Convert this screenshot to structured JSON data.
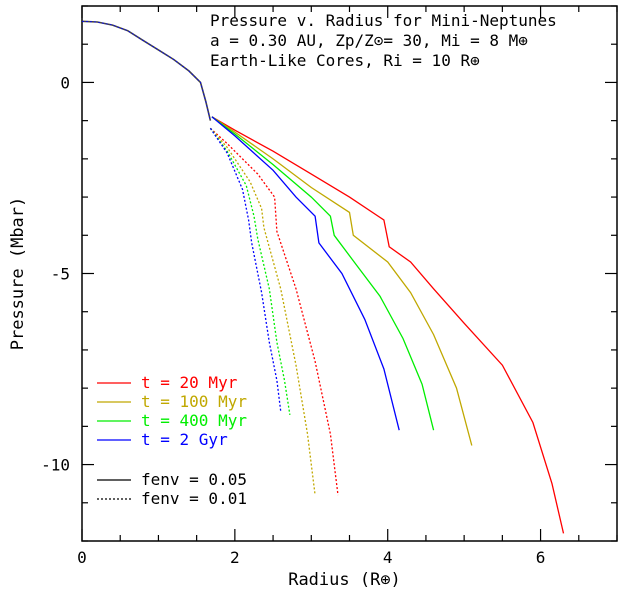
{
  "chart_data": {
    "type": "line",
    "title_lines": [
      "Pressure v. Radius for Mini-Neptunes",
      "a = 0.30 AU, Zp/Z⊙= 30, Mi = 8 M⊕",
      "Earth-Like Cores, Ri = 10 R⊕"
    ],
    "xlabel": "Radius (R⊕)",
    "ylabel": "Pressure (Mbar)",
    "xlim": [
      0,
      7
    ],
    "ylim": [
      -12,
      2
    ],
    "x_ticks": [
      0,
      2,
      4,
      6
    ],
    "y_ticks": [
      0,
      -5,
      -10
    ],
    "x_tick_labels": [
      "0",
      "2",
      "4",
      "6"
    ],
    "y_tick_labels": [
      "0",
      "-5",
      "-10"
    ],
    "grid": false,
    "legend_position": "bottom-left",
    "colors": {
      "t20": "#ff0000",
      "t100": "#c0a800",
      "t400": "#00ee00",
      "t2g": "#0000ff",
      "core": "#444444"
    },
    "legend": {
      "series": [
        {
          "label": "t = 20 Myr",
          "color": "#ff0000"
        },
        {
          "label": "t = 100 Myr",
          "color": "#c0a800"
        },
        {
          "label": "t = 400 Myr",
          "color": "#00ee00"
        },
        {
          "label": "t = 2 Gyr",
          "color": "#0000ff"
        }
      ],
      "styles": [
        {
          "label": "fenv = 0.05",
          "dash": false
        },
        {
          "label": "fenv = 0.01",
          "dash": true
        }
      ]
    },
    "core_profile": {
      "x": [
        0.0,
        0.2,
        0.4,
        0.6,
        0.8,
        1.0,
        1.2,
        1.4,
        1.55,
        1.62,
        1.68
      ],
      "y": [
        1.6,
        1.58,
        1.5,
        1.35,
        1.1,
        0.85,
        0.6,
        0.3,
        0.0,
        -0.5,
        -1.0
      ]
    },
    "series": [
      {
        "name": "t = 20 Myr",
        "fenv": "0.05",
        "color_key": "t20",
        "dashed": false,
        "x": [
          1.7,
          2.0,
          2.5,
          3.0,
          3.5,
          3.95,
          4.02,
          4.3,
          4.6,
          5.0,
          5.5,
          5.9,
          6.15,
          6.3
        ],
        "y": [
          -0.9,
          -1.25,
          -1.8,
          -2.4,
          -3.0,
          -3.6,
          -4.3,
          -4.7,
          -5.4,
          -6.3,
          -7.4,
          -8.9,
          -10.5,
          -11.8
        ]
      },
      {
        "name": "t = 100 Myr",
        "fenv": "0.05",
        "color_key": "t100",
        "dashed": false,
        "x": [
          1.7,
          2.0,
          2.5,
          3.0,
          3.5,
          3.55,
          4.0,
          4.3,
          4.6,
          4.9,
          5.1
        ],
        "y": [
          -0.9,
          -1.3,
          -2.0,
          -2.75,
          -3.4,
          -4.0,
          -4.7,
          -5.5,
          -6.6,
          -8.0,
          -9.5
        ]
      },
      {
        "name": "t = 400 Myr",
        "fenv": "0.05",
        "color_key": "t400",
        "dashed": false,
        "x": [
          1.7,
          2.0,
          2.5,
          3.0,
          3.25,
          3.3,
          3.6,
          3.9,
          4.2,
          4.45,
          4.6
        ],
        "y": [
          -0.9,
          -1.35,
          -2.15,
          -3.0,
          -3.5,
          -4.0,
          -4.8,
          -5.6,
          -6.7,
          -7.9,
          -9.1
        ]
      },
      {
        "name": "t = 2 Gyr",
        "fenv": "0.05",
        "color_key": "t2g",
        "dashed": false,
        "x": [
          1.7,
          2.0,
          2.5,
          2.8,
          3.05,
          3.1,
          3.4,
          3.7,
          3.95,
          4.15
        ],
        "y": [
          -0.9,
          -1.4,
          -2.3,
          -3.0,
          -3.5,
          -4.2,
          -5.0,
          -6.2,
          -7.5,
          -9.1
        ]
      },
      {
        "name": "t = 20 Myr",
        "fenv": "0.01",
        "color_key": "t20",
        "dashed": true,
        "x": [
          1.68,
          1.9,
          2.3,
          2.52,
          2.55,
          2.8,
          3.05,
          3.25,
          3.35
        ],
        "y": [
          -1.2,
          -1.6,
          -2.4,
          -3.0,
          -3.9,
          -5.4,
          -7.3,
          -9.2,
          -10.8
        ]
      },
      {
        "name": "t = 100 Myr",
        "fenv": "0.01",
        "color_key": "t100",
        "dashed": true,
        "x": [
          1.68,
          1.9,
          2.2,
          2.35,
          2.38,
          2.6,
          2.8,
          2.95,
          3.05
        ],
        "y": [
          -1.2,
          -1.7,
          -2.6,
          -3.3,
          -3.8,
          -5.4,
          -7.4,
          -9.2,
          -10.8
        ]
      },
      {
        "name": "t = 400 Myr",
        "fenv": "0.01",
        "color_key": "t400",
        "dashed": true,
        "x": [
          1.68,
          1.9,
          2.15,
          2.25,
          2.3,
          2.45,
          2.55,
          2.65,
          2.72
        ],
        "y": [
          -1.2,
          -1.8,
          -2.7,
          -3.5,
          -4.1,
          -5.4,
          -6.8,
          -7.8,
          -8.7
        ]
      },
      {
        "name": "t = 2 Gyr",
        "fenv": "0.01",
        "color_key": "t2g",
        "dashed": true,
        "x": [
          1.68,
          1.9,
          2.1,
          2.18,
          2.22,
          2.35,
          2.45,
          2.55,
          2.6
        ],
        "y": [
          -1.2,
          -1.85,
          -2.8,
          -3.6,
          -4.2,
          -5.5,
          -6.8,
          -7.8,
          -8.6
        ]
      }
    ]
  }
}
